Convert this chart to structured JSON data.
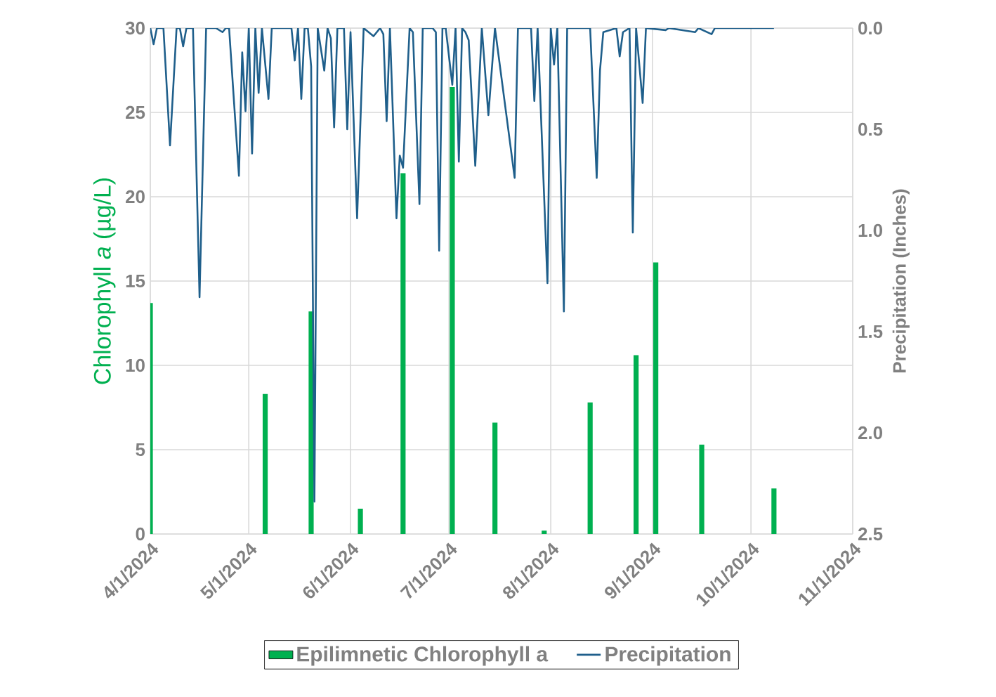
{
  "chart_data": {
    "type": "bar",
    "ylabel": "Chlorophyll *a* (µg/L)",
    "y2label": "Precipitation (Inches)",
    "xlim": [
      "2024-04-01",
      "2024-11-01"
    ],
    "xticks": [
      {
        "value": "2024-04-01",
        "label": "4/1/2024"
      },
      {
        "value": "2024-05-01",
        "label": "5/1/2024"
      },
      {
        "value": "2024-06-01",
        "label": "6/1/2024"
      },
      {
        "value": "2024-07-01",
        "label": "7/1/2024"
      },
      {
        "value": "2024-08-01",
        "label": "8/1/2024"
      },
      {
        "value": "2024-09-01",
        "label": "9/1/2024"
      },
      {
        "value": "2024-10-01",
        "label": "10/1/2024"
      },
      {
        "value": "2024-11-01",
        "label": "11/1/2024"
      }
    ],
    "ylim": [
      0,
      30
    ],
    "yticks": [
      0,
      5,
      10,
      15,
      20,
      25,
      30
    ],
    "y2lim": [
      2.5,
      0
    ],
    "y2ticks": [
      {
        "value": 0,
        "label": "0.0"
      },
      {
        "value": 0.5,
        "label": "0.5"
      },
      {
        "value": 1,
        "label": "1.0"
      },
      {
        "value": 1.5,
        "label": "1.5"
      },
      {
        "value": 2,
        "label": "2.0"
      },
      {
        "value": 2.5,
        "label": "2.5"
      }
    ],
    "grid": true,
    "legend": "bottom",
    "x": [
      "2024-04-01",
      "2024-05-06",
      "2024-05-20",
      "2024-06-04",
      "2024-06-17",
      "2024-07-02",
      "2024-07-15",
      "2024-07-30",
      "2024-08-13",
      "2024-08-27",
      "2024-09-02",
      "2024-09-16",
      "2024-10-08"
    ],
    "series": [
      {
        "name": "Epilimnetic Chlorophyll a",
        "color": "#00b050",
        "values": [
          13.7,
          8.3,
          13.2,
          1.5,
          21.4,
          26.5,
          6.6,
          0.2,
          7.8,
          10.6,
          16.1,
          5.3,
          2.7
        ]
      },
      {
        "name": "Precipitation",
        "type": "line",
        "axis": "y2",
        "color": "#1f5f8b",
        "x": [
          "2024-04-01",
          "2024-04-02",
          "2024-04-03",
          "2024-04-05",
          "2024-04-07",
          "2024-04-09",
          "2024-04-10",
          "2024-04-11",
          "2024-04-12",
          "2024-04-14",
          "2024-04-16",
          "2024-04-18",
          "2024-04-21",
          "2024-04-23",
          "2024-04-24",
          "2024-04-25",
          "2024-04-28",
          "2024-04-29",
          "2024-04-30",
          "2024-05-01",
          "2024-05-02",
          "2024-05-03",
          "2024-05-04",
          "2024-05-05",
          "2024-05-07",
          "2024-05-08",
          "2024-05-14",
          "2024-05-15",
          "2024-05-16",
          "2024-05-17",
          "2024-05-18",
          "2024-05-19",
          "2024-05-20",
          "2024-05-21",
          "2024-05-22",
          "2024-05-24",
          "2024-05-25",
          "2024-05-26",
          "2024-05-27",
          "2024-05-28",
          "2024-05-30",
          "2024-05-31",
          "2024-06-01",
          "2024-06-03",
          "2024-06-05",
          "2024-06-08",
          "2024-06-10",
          "2024-06-11",
          "2024-06-12",
          "2024-06-13",
          "2024-06-15",
          "2024-06-16",
          "2024-06-17",
          "2024-06-19",
          "2024-06-20",
          "2024-06-22",
          "2024-06-23",
          "2024-06-26",
          "2024-06-27",
          "2024-06-28",
          "2024-06-29",
          "2024-06-30",
          "2024-07-02",
          "2024-07-03",
          "2024-07-04",
          "2024-07-05",
          "2024-07-06",
          "2024-07-07",
          "2024-07-09",
          "2024-07-11",
          "2024-07-13",
          "2024-07-15",
          "2024-07-21",
          "2024-07-22",
          "2024-07-26",
          "2024-07-27",
          "2024-07-28",
          "2024-07-31",
          "2024-08-01",
          "2024-08-02",
          "2024-08-03",
          "2024-08-05",
          "2024-08-06",
          "2024-08-13",
          "2024-08-15",
          "2024-08-16",
          "2024-08-17",
          "2024-08-21",
          "2024-08-22",
          "2024-08-23",
          "2024-08-25",
          "2024-08-26",
          "2024-08-27",
          "2024-08-29",
          "2024-08-30",
          "2024-09-05",
          "2024-09-06",
          "2024-09-14",
          "2024-09-15",
          "2024-09-19",
          "2024-09-20",
          "2024-10-08"
        ],
        "values": [
          0,
          0.08,
          0,
          0,
          0.58,
          0,
          0,
          0.09,
          0,
          0,
          1.33,
          0,
          0,
          0.02,
          0,
          0,
          0.73,
          0.12,
          0.41,
          0,
          0.62,
          0,
          0.32,
          0,
          0.35,
          0,
          0,
          0.16,
          0,
          0.35,
          0,
          0,
          0.19,
          2.34,
          0,
          0.21,
          0,
          0.05,
          0.49,
          0,
          0,
          0.5,
          0.02,
          0.94,
          0,
          0.04,
          0,
          0.03,
          0.46,
          0,
          0.94,
          0.63,
          0.69,
          0,
          0.02,
          0.87,
          0,
          0,
          0.02,
          1.1,
          0,
          0,
          0.28,
          0,
          0.66,
          0,
          0.02,
          0.06,
          0.68,
          0,
          0.43,
          0,
          0.74,
          0,
          0,
          0.36,
          0,
          1.26,
          0,
          0.18,
          0,
          1.4,
          0,
          0,
          0.74,
          0.21,
          0.02,
          0,
          0.14,
          0.02,
          0,
          1.01,
          0,
          0.37,
          0,
          0.01,
          0,
          0.02,
          0,
          0.03,
          0,
          0
        ]
      }
    ]
  }
}
